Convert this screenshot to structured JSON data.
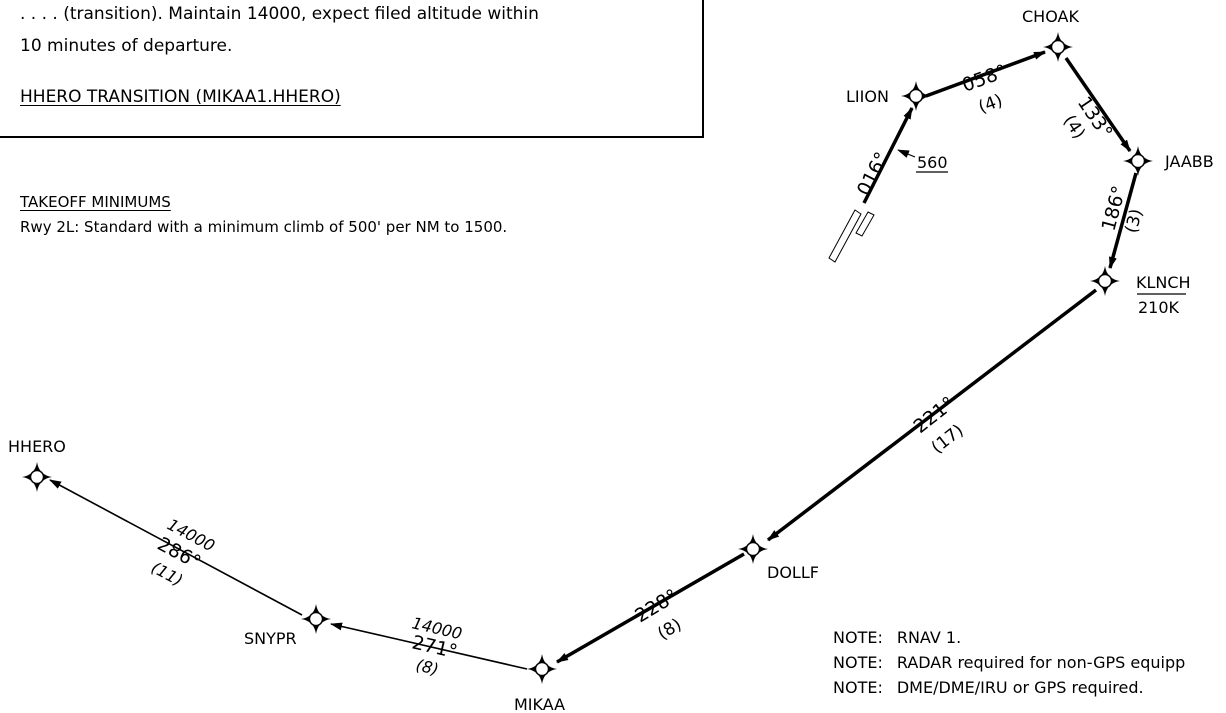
{
  "procedure_text": {
    "line1": ". . . . (transition).  Maintain 14000, expect filed altitude within",
    "line2": "10 minutes of departure.",
    "transition_title": "HHERO TRANSITION (MIKAA1.HHERO)"
  },
  "takeoff": {
    "title": "TAKEOFF MINIMUMS",
    "text": "Rwy 2L: Standard with a minimum climb of 500' per NM to 1500."
  },
  "fixes": {
    "choak": "CHOAK",
    "liion": "LIION",
    "jaabb": "JAABB",
    "klnch": "KLNCH",
    "klnch_speed": "210K",
    "dollf": "DOLLF",
    "mikaa": "MIKAA",
    "snypr": "SNYPR",
    "hhero": "HHERO"
  },
  "legs": {
    "initial_course": "016°",
    "initial_altitude": "560",
    "liion_choak_course": "058°",
    "liion_choak_dist": "(4)",
    "choak_jaabb_course": "133°",
    "choak_jaabb_dist": "(4)",
    "jaabb_klnch_course": "186°",
    "jaabb_klnch_dist": "(3)",
    "klnch_dollf_course": "221°",
    "klnch_dollf_dist": "(17)",
    "dollf_mikaa_course": "228°",
    "dollf_mikaa_dist": "(8)",
    "mikaa_snypr_alt": "14000",
    "mikaa_snypr_course": "271°",
    "mikaa_snypr_dist": "(8)",
    "snypr_hhero_alt": "14000",
    "snypr_hhero_course": "286°",
    "snypr_hhero_dist": "(11)"
  },
  "notes": {
    "prefix": "NOTE:",
    "n1": "RNAV 1.",
    "n2": "RADAR required for non-GPS equipp",
    "n3": "DME/DME/IRU or GPS required."
  }
}
